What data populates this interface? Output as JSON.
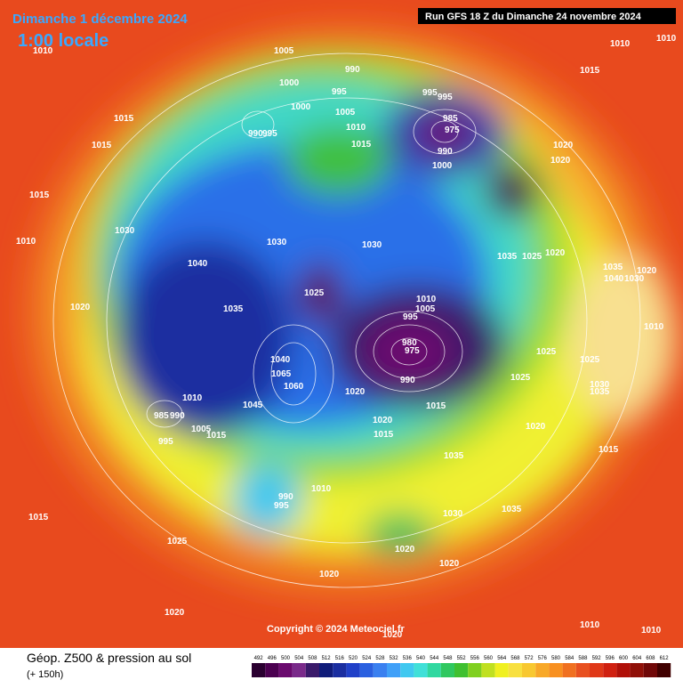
{
  "header": {
    "date": "Dimanche 1 décembre 2024",
    "time": "1:00 locale",
    "run": "Run GFS 18 Z du Dimanche 24 novembre 2024"
  },
  "footer": {
    "title": "Géop. Z500 & pression au sol",
    "lead": "(+ 150h)",
    "copyright": "Copyright © 2024 Meteociel.fr"
  },
  "pressure_labels": [
    "1010",
    "1005",
    "990",
    "1000",
    "995",
    "1015",
    "1015",
    "1000",
    "1005",
    "990",
    "995",
    "1010",
    "1015",
    "995",
    "995",
    "985",
    "975",
    "990",
    "1000",
    "1020",
    "1020",
    "1015",
    "1010",
    "1010",
    "1015",
    "1010",
    "1030",
    "1030",
    "1030",
    "1035",
    "1025",
    "1020",
    "1035",
    "1020",
    "1040",
    "1030",
    "1040",
    "1020",
    "1035",
    "1025",
    "1010",
    "1005",
    "995",
    "980",
    "975",
    "1010",
    "1025",
    "1025",
    "1025",
    "1030",
    "1035",
    "1040",
    "1060",
    "1065",
    "1020",
    "1010",
    "1045",
    "990",
    "990",
    "985",
    "1015",
    "1020",
    "1015",
    "1005",
    "1015",
    "995",
    "1020",
    "1015",
    "1035",
    "990",
    "1010",
    "995",
    "1030",
    "1035",
    "1015",
    "1025",
    "1020",
    "1020",
    "1020",
    "1020",
    "1020",
    "1010",
    "1010"
  ],
  "legend": {
    "levels": [
      492,
      496,
      500,
      504,
      508,
      512,
      516,
      520,
      524,
      528,
      532,
      536,
      540,
      544,
      548,
      552,
      556,
      560,
      564,
      568,
      572,
      576,
      580,
      584,
      588,
      592,
      596,
      600,
      604,
      608,
      612
    ],
    "colors": [
      "#2a0030",
      "#4b0050",
      "#6a0a6e",
      "#7a2a8a",
      "#3a1a6a",
      "#101c7a",
      "#1a2ea0",
      "#2040c8",
      "#2a60e0",
      "#3a80f0",
      "#40a0f8",
      "#40c8f0",
      "#40e0d8",
      "#30d8a0",
      "#30c860",
      "#40c030",
      "#80d020",
      "#c0e020",
      "#f0f020",
      "#f8e040",
      "#f8c830",
      "#f8a828",
      "#f89020",
      "#f07020",
      "#e85020",
      "#e03818",
      "#d02010",
      "#b01008",
      "#901008",
      "#700808",
      "#400000"
    ]
  }
}
